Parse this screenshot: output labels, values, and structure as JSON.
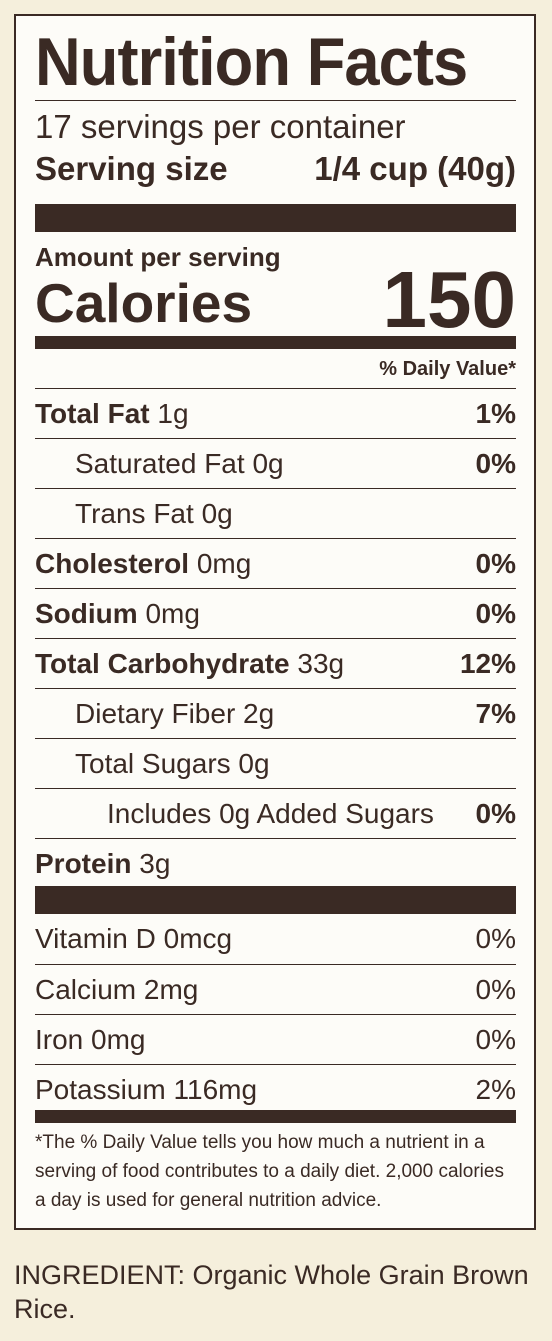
{
  "label": {
    "title": "Nutrition Facts",
    "servings_per_container": "17 servings per container",
    "serving_size_label": "Serving size",
    "serving_size_value": "1/4 cup (40g)",
    "amount_per_serving": "Amount per serving",
    "calories_label": "Calories",
    "calories_value": "150",
    "daily_value_header": "% Daily Value*",
    "nutrients": [
      {
        "name": "Total Fat",
        "amount": "1g",
        "dv": "1%"
      },
      {
        "name": "Saturated Fat",
        "amount": "0g",
        "dv": "0%"
      },
      {
        "name": "Trans Fat",
        "amount": "0g",
        "dv": ""
      },
      {
        "name": "Cholesterol",
        "amount": "0mg",
        "dv": "0%"
      },
      {
        "name": "Sodium",
        "amount": "0mg",
        "dv": "0%"
      },
      {
        "name": "Total Carbohydrate",
        "amount": "33g",
        "dv": "12%"
      },
      {
        "name": "Dietary Fiber",
        "amount": "2g",
        "dv": "7%"
      },
      {
        "name": "Total Sugars",
        "amount": "0g",
        "dv": ""
      },
      {
        "name": "Includes 0g Added Sugars",
        "amount": "",
        "dv": "0%"
      },
      {
        "name": "Protein",
        "amount": "3g",
        "dv": ""
      }
    ],
    "vitamins": [
      {
        "name": "Vitamin D 0mcg",
        "dv": "0%"
      },
      {
        "name": "Calcium 2mg",
        "dv": "0%"
      },
      {
        "name": "Iron 0mg",
        "dv": "0%"
      },
      {
        "name": "Potassium 116mg",
        "dv": "2%"
      }
    ],
    "footnote": "*The % Daily Value tells you how much a nutrient in a serving of food contributes to a daily diet. 2,000 calories a day is used for general nutrition advice."
  },
  "ingredient": "INGREDIENT: Organic Whole Grain Brown Rice."
}
